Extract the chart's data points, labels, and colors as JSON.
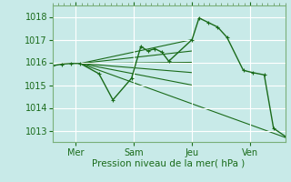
{
  "xlabel": "Pression niveau de la mer( hPa )",
  "bg_color": "#c8eae8",
  "grid_color": "#b0d8d4",
  "line_color": "#1a6b1a",
  "ylim": [
    1012.5,
    1018.5
  ],
  "xlim": [
    0,
    100
  ],
  "yticks": [
    1013,
    1014,
    1015,
    1016,
    1017,
    1018
  ],
  "xtick_positions": [
    10,
    35,
    60,
    85
  ],
  "xtick_labels": [
    "Mer",
    "Sam",
    "Jeu",
    "Ven"
  ],
  "fan_origin_x": 12,
  "fan_origin_y": 1015.95,
  "fan_ends": [
    [
      100,
      1012.7
    ],
    [
      60,
      1017.0
    ],
    [
      60,
      1016.5
    ],
    [
      60,
      1016.0
    ],
    [
      60,
      1015.55
    ],
    [
      60,
      1015.0
    ]
  ],
  "main_line_x": [
    0,
    4,
    8,
    12,
    20,
    26,
    34,
    38,
    41,
    44,
    47,
    50,
    60,
    63,
    67,
    71,
    75,
    82,
    86,
    91,
    95,
    100
  ],
  "main_line_y": [
    1015.85,
    1015.92,
    1015.95,
    1015.95,
    1015.5,
    1014.35,
    1015.3,
    1016.7,
    1016.5,
    1016.6,
    1016.45,
    1016.05,
    1017.0,
    1017.95,
    1017.75,
    1017.55,
    1017.1,
    1015.65,
    1015.55,
    1015.45,
    1013.1,
    1012.75
  ]
}
